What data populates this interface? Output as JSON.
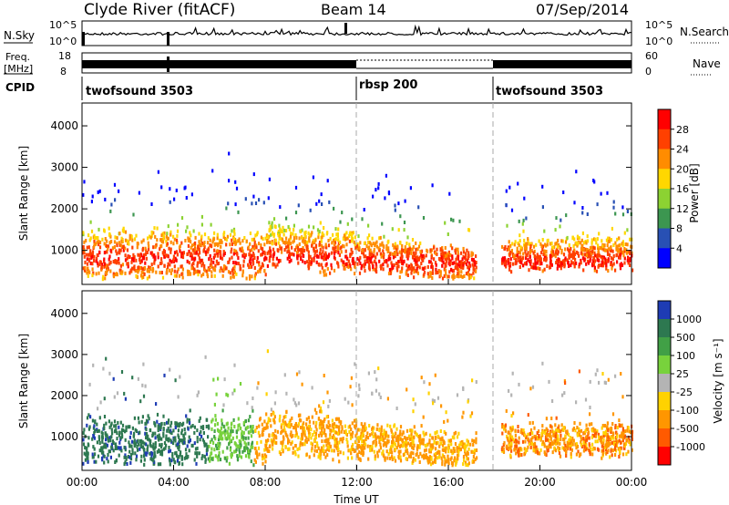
{
  "header": {
    "title": "Clyde River (fitACF)",
    "beam": "Beam 14",
    "date": "07/Sep/2014"
  },
  "nsky_panel": {
    "left_label": "N.Sky",
    "right_label": "N.Search",
    "ticks": [
      "10^5",
      "10^0"
    ]
  },
  "freq_panel": {
    "left_label_1": "Freq.",
    "left_label_2": "[MHz]",
    "right_label": "Nave",
    "left_ticks": [
      "18",
      "8"
    ],
    "right_ticks": [
      "60",
      "0"
    ]
  },
  "cpid_panel": {
    "label": "CPID",
    "segments": [
      {
        "label": "twofsound 3503",
        "start_hour": 0
      },
      {
        "label": "rbsp 200",
        "start_hour": 12
      },
      {
        "label": "twofsound 3503",
        "start_hour": 18
      }
    ]
  },
  "chart_data": [
    {
      "type": "heatmap",
      "name": "power",
      "ylabel": "Slant Range [km]",
      "colorbar_label": "Power [dB]",
      "colorbar_ticks": [
        "28",
        "24",
        "20",
        "16",
        "12",
        "8",
        "4"
      ],
      "colorbar_colors": [
        "#ff0000",
        "#ff4000",
        "#ff8c00",
        "#ffd700",
        "#8cd232",
        "#3c9650",
        "#2850b4",
        "#0000ff"
      ],
      "y_ticks": [
        "4000",
        "3000",
        "2000",
        "1000"
      ],
      "y_range": [
        180,
        4550
      ],
      "x_range_hours": [
        0,
        24
      ]
    },
    {
      "type": "heatmap",
      "name": "velocity",
      "ylabel": "Slant Range [km]",
      "colorbar_label": "Velocity [m s⁻¹]",
      "colorbar_ticks": [
        "1000",
        "500",
        "100",
        "25",
        "-25",
        "-100",
        "-500",
        "-1000"
      ],
      "colorbar_colors": [
        "#1e3cb4",
        "#2d7850",
        "#41a046",
        "#78d23c",
        "#b4b4b4",
        "#ffd200",
        "#ff9600",
        "#ff5a00",
        "#ff0000"
      ],
      "y_ticks": [
        "4000",
        "3000",
        "2000",
        "1000"
      ],
      "y_range": [
        180,
        4550
      ],
      "x_range_hours": [
        0,
        24
      ]
    }
  ],
  "time_axis": {
    "xlabel": "Time UT",
    "ticks": [
      "00:00",
      "04:00",
      "08:00",
      "12:00",
      "16:00",
      "20:00",
      "00:00"
    ]
  }
}
